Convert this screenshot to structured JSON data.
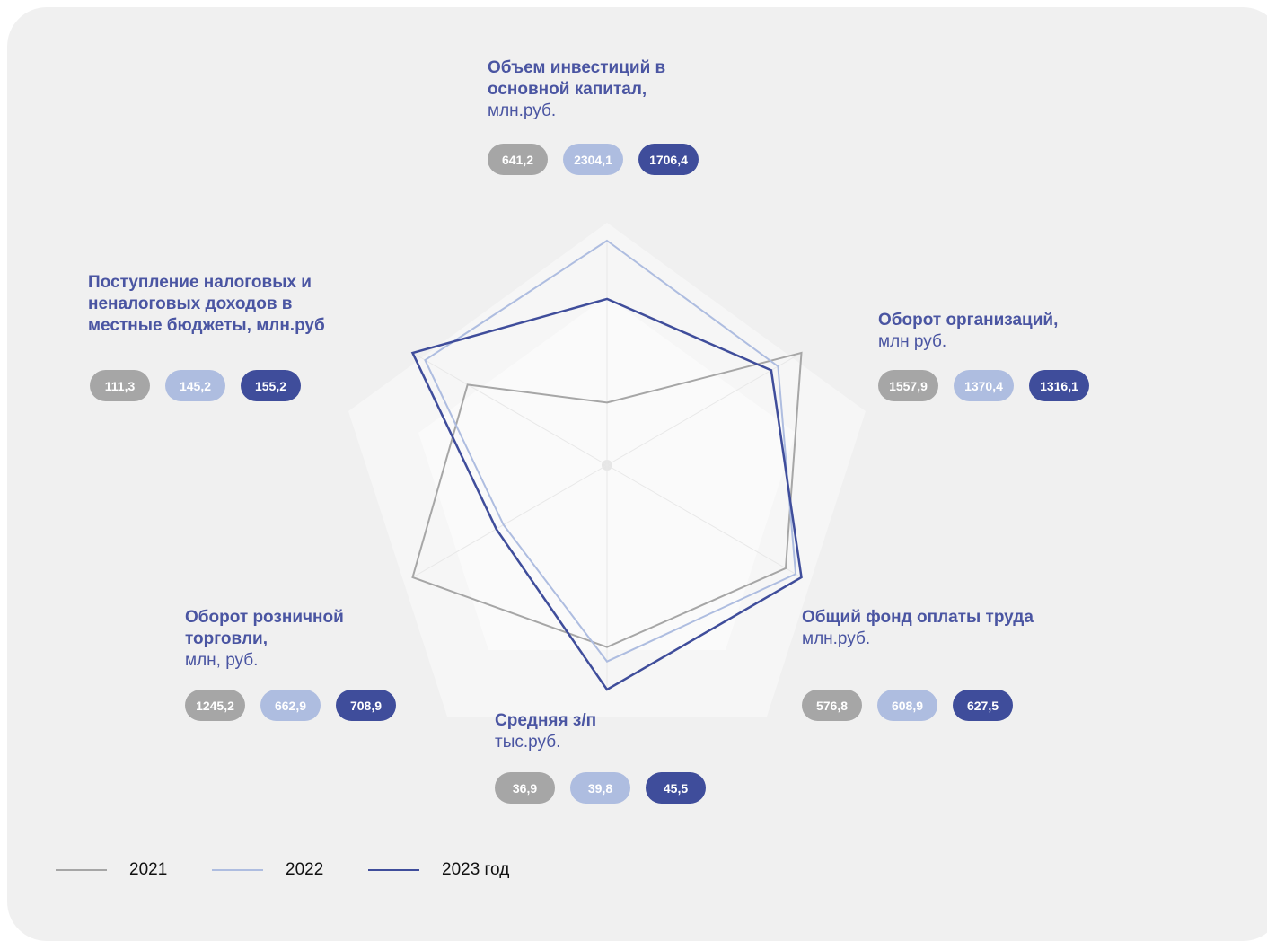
{
  "chart_data": {
    "type": "radar",
    "axes": [
      {
        "title": "Объем инвестиций в основной капитал,",
        "unit": "млн.руб."
      },
      {
        "title": "Оборот организаций,",
        "unit": "млн руб."
      },
      {
        "title": "Общий фонд оплаты труда",
        "unit": "млн.руб."
      },
      {
        "title": "Средняя з/п",
        "unit": "тыс.руб."
      },
      {
        "title": "Оборот розничной торговли,",
        "unit": "млн, руб."
      },
      {
        "title": "Поступление налоговых и неналоговых доходов  в местные бюджеты, млн.руб"
      }
    ],
    "series": [
      {
        "name": "2021",
        "color": "#a6a6a6",
        "values": [
          641.2,
          1557.9,
          576.8,
          36.9,
          1245.2,
          111.3
        ],
        "value_labels": [
          "641,2",
          "1557,9",
          "576,8",
          "36,9",
          "1245,2",
          "111,3"
        ]
      },
      {
        "name": "2022",
        "color": "#aebde0",
        "values": [
          2304.1,
          1370.4,
          608.9,
          39.8,
          662.9,
          145.2
        ],
        "value_labels": [
          "2304,1",
          "1370,4",
          "608,9",
          "39,8",
          "662,9",
          "145,2"
        ]
      },
      {
        "name": "2023 год",
        "color": "#3f4d9b",
        "values": [
          1706.4,
          1316.1,
          627.5,
          45.5,
          708.9,
          155.2
        ],
        "value_labels": [
          "1706,4",
          "1316,1",
          "627,5",
          "45,5",
          "708,9",
          "155,2"
        ]
      }
    ]
  }
}
